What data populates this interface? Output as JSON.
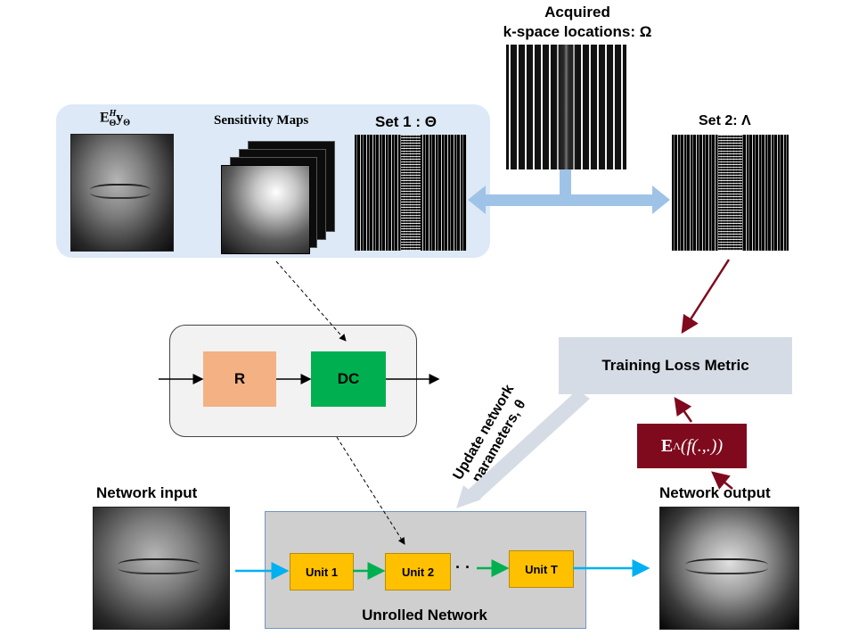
{
  "acquired": {
    "line1": "Acquired",
    "line2": "k-space locations: Ω"
  },
  "panel": {
    "eh_main": "E",
    "eh_sup": "H",
    "eh_sub": "Θ",
    "eh_y": "y",
    "eh_ysub": "Θ",
    "sensitivity": "Sensitivity Maps",
    "set1": "Set 1 : Θ"
  },
  "set2": "Set 2: Λ",
  "blocks": {
    "r": "R",
    "dc": "DC"
  },
  "loss": "Training Loss Metric",
  "update": {
    "line1": "Update network",
    "line2": "parameters, θ"
  },
  "eloss": {
    "e": "E",
    "sub": "Λ",
    "rest": "(f(.,.))"
  },
  "network_input": "Network input",
  "network_output": "Network output",
  "units": {
    "u1": "Unit 1",
    "u2": "Unit 2",
    "dots": "· ·",
    "uT": "Unit T"
  },
  "unrolled": "Unrolled Network",
  "colors": {
    "panel": "#dde9f6",
    "blue_arrow": "#9fc3e6",
    "r_block": "#f4b183",
    "dc_block": "#00b050",
    "loss_box": "#d6dce5",
    "e_box": "#7f0a1e",
    "unit": "#ffc000",
    "green_arrow": "#00b050",
    "cyan_arrow": "#00b0f0",
    "dark_red_arrow": "#7f0a1e"
  }
}
